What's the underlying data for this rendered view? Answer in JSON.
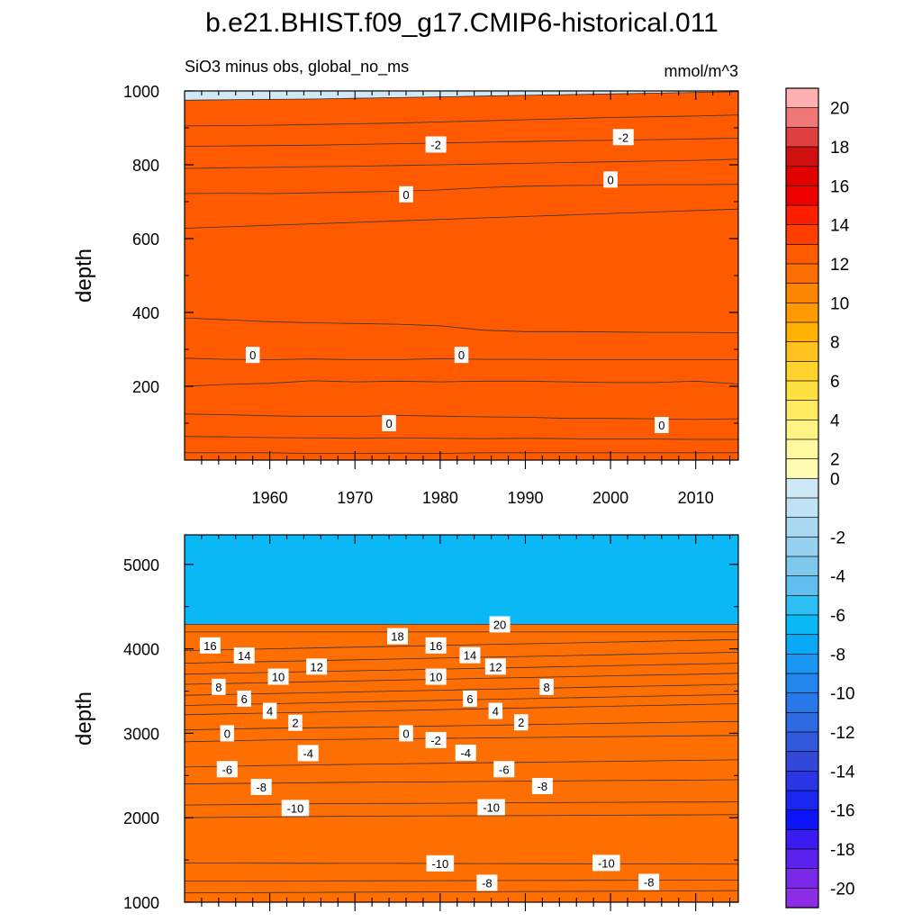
{
  "figure": {
    "title": "b.e21.BHIST.f09_g17.CMIP6-historical.011",
    "left_subtitle": "SiO3 minus obs, global_no_ms",
    "right_subtitle": "mmol/m^3"
  },
  "chart_data": [
    {
      "type": "heatmap",
      "ylabel": "depth",
      "xlabel": "",
      "xlim": [
        1950,
        2015
      ],
      "ylim": [
        1000,
        0
      ],
      "x_ticks": [
        "1960",
        "1970",
        "1980",
        "1990",
        "2000",
        "2010"
      ],
      "y_ticks": [
        "200",
        "400",
        "600",
        "800",
        "1000"
      ],
      "band_start_value": 1,
      "boundaries": [
        {
          "values": [
            20,
            20,
            20,
            18,
            18,
            19,
            18,
            20,
            20,
            20,
            20,
            20,
            20,
            20
          ]
        },
        {
          "values": [
            64,
            63,
            61,
            60,
            59,
            60,
            59,
            58,
            59,
            58,
            57,
            57,
            56,
            56
          ]
        },
        {
          "values": [
            125,
            123,
            120,
            118,
            118,
            121,
            119,
            117,
            116,
            113,
            113,
            112,
            110,
            112
          ]
        },
        {
          "values": [
            200,
            205,
            208,
            215,
            212,
            214,
            212,
            214,
            214,
            212,
            210,
            210,
            214,
            206
          ]
        },
        {
          "values": [
            276,
            273,
            272,
            274,
            272,
            272,
            275,
            273,
            273,
            272,
            272,
            272,
            272,
            272
          ]
        },
        {
          "values": [
            385,
            380,
            375,
            372,
            370,
            368,
            364,
            352,
            348,
            348,
            347,
            346,
            346,
            345
          ]
        },
        {
          "values": [
            628,
            632,
            636,
            640,
            644,
            648,
            652,
            656,
            660,
            664,
            668,
            672,
            676,
            680
          ]
        },
        {
          "values": [
            722,
            723,
            722,
            724,
            726,
            728,
            732,
            738,
            742,
            744,
            745,
            746,
            746,
            747
          ]
        },
        {
          "values": [
            790,
            792,
            793,
            795,
            796,
            798,
            800,
            802,
            804,
            806,
            808,
            810,
            812,
            815
          ]
        },
        {
          "values": [
            850,
            851,
            852,
            853,
            855,
            857,
            859,
            861,
            863,
            865,
            866,
            868,
            870,
            872
          ]
        },
        {
          "values": [
            905,
            906,
            907,
            909,
            911,
            913,
            916,
            919,
            922,
            925,
            928,
            930,
            932,
            935
          ]
        },
        {
          "values": [
            975,
            976,
            977,
            978,
            980,
            982,
            984,
            986,
            988,
            990,
            992,
            994,
            996,
            998
          ]
        }
      ],
      "contour_labels": [
        {
          "text": "0",
          "x": 1974.0,
          "y": 100
        },
        {
          "text": "0",
          "x": 2006.0,
          "y": 95
        },
        {
          "text": "0",
          "x": 1958.0,
          "y": 285
        },
        {
          "text": "0",
          "x": 1982.5,
          "y": 285
        },
        {
          "text": "0",
          "x": 1976.0,
          "y": 720
        },
        {
          "text": "0",
          "x": 2000.0,
          "y": 760
        },
        {
          "text": "-2",
          "x": 1979.5,
          "y": 855
        },
        {
          "text": "-2",
          "x": 2001.5,
          "y": 875
        }
      ]
    },
    {
      "type": "heatmap",
      "ylabel": "depth",
      "xlabel": "",
      "xlim": [
        1950,
        2015
      ],
      "ylim": [
        5350,
        1000
      ],
      "x_ticks": [],
      "y_ticks": [
        "1000",
        "2000",
        "3000",
        "4000",
        "5000"
      ],
      "band_start_value": -7,
      "boundaries": [
        {
          "values": [
            1110,
            1112,
            1114,
            1116,
            1118,
            1120,
            1122,
            1124,
            1126,
            1128,
            1130,
            1132,
            1134,
            1136
          ]
        },
        {
          "values": [
            1250,
            1250,
            1251,
            1252,
            1253,
            1254,
            1255,
            1256,
            1257,
            1258,
            1259,
            1260,
            1261,
            1262
          ]
        },
        {
          "values": [
            1465,
            1463,
            1462,
            1461,
            1460,
            1459,
            1458,
            1457,
            1456,
            1455,
            1454,
            1453,
            1452,
            1451
          ]
        },
        {
          "values": [
            2000,
            2005,
            2010,
            2015,
            2018,
            2020,
            2022,
            2024,
            2026,
            2028,
            2030,
            2032,
            2034,
            2036
          ]
        },
        {
          "values": [
            2150,
            2155,
            2160,
            2165,
            2168,
            2170,
            2172,
            2175,
            2178,
            2180,
            2182,
            2184,
            2186,
            2188
          ]
        },
        {
          "values": [
            2400,
            2405,
            2410,
            2415,
            2420,
            2423,
            2426,
            2430,
            2433,
            2436,
            2440,
            2443,
            2446,
            2450
          ]
        },
        {
          "values": [
            2600,
            2610,
            2618,
            2625,
            2632,
            2638,
            2645,
            2650,
            2656,
            2662,
            2668,
            2674,
            2680,
            2686
          ]
        },
        {
          "values": [
            2900,
            2910,
            2920,
            2925,
            2930,
            2935,
            2940,
            2945,
            2950,
            2955,
            2960,
            2965,
            2970,
            2975
          ]
        },
        {
          "values": [
            3040,
            3050,
            3060,
            3065,
            3070,
            3078,
            3086,
            3094,
            3102,
            3110,
            3118,
            3126,
            3134,
            3140
          ]
        },
        {
          "values": [
            3220,
            3230,
            3240,
            3250,
            3260,
            3270,
            3280,
            3290,
            3300,
            3310,
            3320,
            3330,
            3340,
            3350
          ]
        },
        {
          "values": [
            3330,
            3340,
            3350,
            3360,
            3370,
            3380,
            3390,
            3400,
            3410,
            3420,
            3430,
            3440,
            3450,
            3460
          ]
        },
        {
          "values": [
            3450,
            3460,
            3470,
            3480,
            3490,
            3500,
            3510,
            3520,
            3530,
            3540,
            3550,
            3560,
            3570,
            3580
          ]
        },
        {
          "values": [
            3580,
            3590,
            3600,
            3610,
            3620,
            3630,
            3640,
            3650,
            3660,
            3670,
            3680,
            3690,
            3700,
            3710
          ]
        },
        {
          "values": [
            3700,
            3710,
            3720,
            3730,
            3740,
            3750,
            3760,
            3770,
            3780,
            3790,
            3800,
            3810,
            3820,
            3830
          ]
        },
        {
          "values": [
            3830,
            3840,
            3850,
            3860,
            3870,
            3880,
            3890,
            3900,
            3910,
            3920,
            3930,
            3940,
            3950,
            3960
          ]
        },
        {
          "values": [
            3980,
            3990,
            4000,
            4010,
            4020,
            4030,
            4040,
            4050,
            4060,
            4070,
            4080,
            4090,
            4100,
            4110
          ]
        },
        {
          "values": [
            4200,
            4200,
            4200,
            4200,
            4200,
            4200,
            4200,
            4200,
            4200,
            4200,
            4200,
            4200,
            4200,
            4200
          ]
        },
        {
          "values": [
            4290,
            4290,
            4290,
            4290,
            4290,
            4290,
            4290,
            4290,
            4290,
            4290,
            4290,
            4290,
            4290,
            4290
          ]
        }
      ],
      "contour_labels": [
        {
          "text": "-8",
          "x": 1985.5,
          "y": 1230
        },
        {
          "text": "-8",
          "x": 2004.5,
          "y": 1240
        },
        {
          "text": "-10",
          "x": 1980.0,
          "y": 1460
        },
        {
          "text": "-10",
          "x": 1999.5,
          "y": 1465
        },
        {
          "text": "-10",
          "x": 1963.0,
          "y": 2115
        },
        {
          "text": "-10",
          "x": 1986.0,
          "y": 2125
        },
        {
          "text": "-8",
          "x": 1959.0,
          "y": 2365
        },
        {
          "text": "-8",
          "x": 1992.0,
          "y": 2375
        },
        {
          "text": "-6",
          "x": 1955.0,
          "y": 2575
        },
        {
          "text": "-6",
          "x": 1987.5,
          "y": 2575
        },
        {
          "text": "-4",
          "x": 1964.5,
          "y": 2765
        },
        {
          "text": "-4",
          "x": 1983.0,
          "y": 2770
        },
        {
          "text": "-2",
          "x": 1979.5,
          "y": 2920
        },
        {
          "text": "0",
          "x": 1955.0,
          "y": 3000
        },
        {
          "text": "0",
          "x": 1976.0,
          "y": 3000
        },
        {
          "text": "2",
          "x": 1963.0,
          "y": 3125
        },
        {
          "text": "2",
          "x": 1989.5,
          "y": 3130
        },
        {
          "text": "4",
          "x": 1960.0,
          "y": 3265
        },
        {
          "text": "4",
          "x": 1986.5,
          "y": 3265
        },
        {
          "text": "6",
          "x": 1957.0,
          "y": 3410
        },
        {
          "text": "6",
          "x": 1983.5,
          "y": 3410
        },
        {
          "text": "8",
          "x": 1954.0,
          "y": 3550
        },
        {
          "text": "8",
          "x": 1992.5,
          "y": 3550
        },
        {
          "text": "10",
          "x": 1961.0,
          "y": 3670
        },
        {
          "text": "10",
          "x": 1979.5,
          "y": 3670
        },
        {
          "text": "12",
          "x": 1965.5,
          "y": 3790
        },
        {
          "text": "12",
          "x": 1986.5,
          "y": 3790
        },
        {
          "text": "14",
          "x": 1957.0,
          "y": 3920
        },
        {
          "text": "14",
          "x": 1983.5,
          "y": 3925
        },
        {
          "text": "16",
          "x": 1953.0,
          "y": 4040
        },
        {
          "text": "16",
          "x": 1979.5,
          "y": 4040
        },
        {
          "text": "18",
          "x": 1975.0,
          "y": 4150
        },
        {
          "text": "20",
          "x": 1987.0,
          "y": 4290
        }
      ]
    }
  ],
  "colorbar": {
    "tick_labels": [
      "20",
      "18",
      "16",
      "14",
      "12",
      "10",
      "8",
      "6",
      "4",
      "2",
      "0",
      "-2",
      "-4",
      "-6",
      "-8",
      "-10",
      "-12",
      "-14",
      "-16",
      "-18",
      "-20"
    ],
    "colors": [
      "#ffb1b1",
      "#f07878",
      "#e04040",
      "#d01010",
      "#e00000",
      "#ec0000",
      "#ff1e00",
      "#ff3e00",
      "#ff5a00",
      "#ff6e00",
      "#ff8600",
      "#ff9a00",
      "#ffb000",
      "#ffc21e",
      "#ffd22e",
      "#ffe040",
      "#ffea60",
      "#fff384",
      "#fff8a0",
      "#fffcb4",
      "#cfe8f6",
      "#bfe2f4",
      "#a9d8f0",
      "#95d0ee",
      "#7ec8ec",
      "#60bfee",
      "#2dbef3",
      "#0ab8f6",
      "#0aa9f6",
      "#1a97f3",
      "#2187ee",
      "#2779e8",
      "#2d6ae2",
      "#3059dc",
      "#3347d8",
      "#2a36e6",
      "#1a25f0",
      "#0d14f8",
      "#3b1cf0",
      "#5a22ec",
      "#7a28e8",
      "#8d2ee6"
    ],
    "band_values": [
      21,
      20,
      19,
      18,
      17,
      16,
      15,
      14,
      13,
      12,
      11,
      10,
      9,
      8,
      7,
      6,
      5,
      4,
      3,
      2,
      1,
      -1,
      -2,
      -3,
      -4,
      -5,
      -6,
      -7,
      -8,
      -9,
      -10,
      -11,
      -12,
      -13,
      -14,
      -15,
      -16,
      -17,
      -18,
      -19,
      -20,
      -21
    ]
  }
}
